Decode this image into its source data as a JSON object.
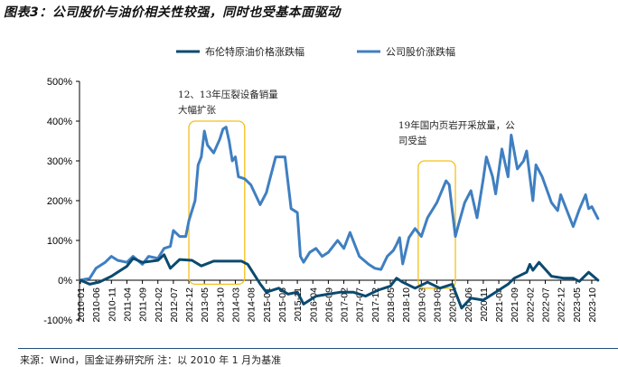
{
  "title": "图表3：公司股价与油价相关性较强，同时也受基本面驱动",
  "source": "来源：Wind，国金证券研究所  注：以 2010 年 1 月为基准",
  "chart_data": {
    "type": "line",
    "title": "图表3：公司股价与油价相关性较强，同时也受基本面驱动",
    "xlabel": "",
    "ylabel": "",
    "ylim": [
      -100,
      500
    ],
    "yticks": [
      "-100%",
      "0%",
      "100%",
      "200%",
      "300%",
      "400%",
      "500%"
    ],
    "ytick_values": [
      -100,
      0,
      100,
      200,
      300,
      400,
      500
    ],
    "x_start": "2010-01",
    "xticks": [
      "2010-01",
      "2010-06",
      "2010-11",
      "2011-04",
      "2011-09",
      "2012-02",
      "2012-07",
      "2012-12",
      "2013-05",
      "2013-10",
      "2014-03",
      "2014-08",
      "2015-01",
      "2015-06",
      "2015-11",
      "2016-04",
      "2016-09",
      "2017-02",
      "2017-07",
      "2017-12",
      "2018-05",
      "2018-10",
      "2019-03",
      "2019-08",
      "2020-01",
      "2020-06",
      "2020-11",
      "2021-04",
      "2021-09",
      "2022-02",
      "2022-07",
      "2022-12",
      "2023-05",
      "2023-10"
    ],
    "legend_position": "top-center",
    "grid": false,
    "series": [
      {
        "name": "布伦特原油价格涨跌幅",
        "color": "#0b4a6f",
        "x": [
          "2010-01",
          "2010-04",
          "2010-07",
          "2010-11",
          "2011-04",
          "2011-06",
          "2011-09",
          "2012-02",
          "2012-04",
          "2012-06",
          "2012-09",
          "2013-01",
          "2013-04",
          "2013-08",
          "2014-05",
          "2014-07",
          "2014-11",
          "2015-01",
          "2015-05",
          "2015-08",
          "2015-11",
          "2016-01",
          "2016-05",
          "2016-09",
          "2017-01",
          "2017-05",
          "2017-09",
          "2018-01",
          "2018-05",
          "2018-07",
          "2018-09",
          "2019-01",
          "2019-05",
          "2019-09",
          "2020-01",
          "2020-04",
          "2020-07",
          "2020-11",
          "2021-03",
          "2021-07",
          "2021-09",
          "2022-01",
          "2022-02",
          "2022-03",
          "2022-05",
          "2022-09",
          "2023-01",
          "2023-04",
          "2023-06",
          "2023-09",
          "2023-12"
        ],
        "values": [
          0,
          -10,
          -5,
          10,
          35,
          55,
          45,
          50,
          64,
          30,
          52,
          50,
          36,
          48,
          48,
          40,
          -9,
          -30,
          -20,
          -35,
          -30,
          -60,
          -40,
          -35,
          -30,
          -30,
          -40,
          -25,
          -15,
          5,
          -5,
          -20,
          -5,
          -20,
          -10,
          -70,
          -45,
          -50,
          -30,
          -10,
          5,
          20,
          40,
          25,
          45,
          10,
          5,
          5,
          -3,
          20,
          0
        ]
      },
      {
        "name": "公司股价涨跌幅",
        "color": "#3f7fc1",
        "x": [
          "2010-01",
          "2010-04",
          "2010-06",
          "2010-09",
          "2010-11",
          "2011-01",
          "2011-04",
          "2011-06",
          "2011-09",
          "2011-11",
          "2012-02",
          "2012-04",
          "2012-06",
          "2012-07",
          "2012-09",
          "2012-11",
          "2012-12",
          "2013-02",
          "2013-03",
          "2013-04",
          "2013-05",
          "2013-06",
          "2013-08",
          "2013-10",
          "2013-11",
          "2013-12",
          "2014-01",
          "2014-02",
          "2014-03",
          "2014-04",
          "2014-06",
          "2014-08",
          "2014-11",
          "2015-01",
          "2015-02",
          "2015-04",
          "2015-07",
          "2015-09",
          "2015-11",
          "2015-12",
          "2016-01",
          "2016-03",
          "2016-05",
          "2016-07",
          "2016-09",
          "2016-12",
          "2017-02",
          "2017-04",
          "2017-07",
          "2017-10",
          "2017-12",
          "2018-02",
          "2018-04",
          "2018-06",
          "2018-07",
          "2018-08",
          "2018-09",
          "2018-11",
          "2019-01",
          "2019-03",
          "2019-05",
          "2019-08",
          "2019-11",
          "2019-12",
          "2020-02",
          "2020-03",
          "2020-05",
          "2020-07",
          "2020-09",
          "2020-11",
          "2020-12",
          "2021-02",
          "2021-03",
          "2021-05",
          "2021-07",
          "2021-08",
          "2021-10",
          "2021-12",
          "2022-01",
          "2022-03",
          "2022-04",
          "2022-06",
          "2022-09",
          "2022-11",
          "2022-12",
          "2023-02",
          "2023-04",
          "2023-06",
          "2023-08",
          "2023-09",
          "2023-10",
          "2023-12"
        ],
        "values": [
          0,
          5,
          30,
          45,
          60,
          50,
          45,
          60,
          40,
          60,
          55,
          80,
          85,
          125,
          110,
          110,
          150,
          200,
          290,
          310,
          375,
          340,
          320,
          355,
          380,
          385,
          350,
          300,
          310,
          260,
          255,
          240,
          190,
          220,
          250,
          310,
          310,
          180,
          170,
          60,
          45,
          70,
          80,
          60,
          70,
          100,
          80,
          120,
          60,
          40,
          30,
          27,
          60,
          75,
          90,
          107,
          41,
          107,
          130,
          110,
          157,
          195,
          250,
          240,
          110,
          140,
          195,
          225,
          157,
          255,
          310,
          260,
          217,
          330,
          260,
          365,
          280,
          300,
          325,
          200,
          290,
          260,
          195,
          175,
          215,
          175,
          135,
          178,
          215,
          180,
          185,
          155
        ]
      }
    ],
    "annotations": [
      {
        "text_line1": "12、13年压裂设备销量",
        "text_line2": "大幅扩张",
        "range": [
          "2012-12",
          "2014-06"
        ],
        "yrange": [
          -10,
          400
        ]
      },
      {
        "text_line1": "19年国内页岩开采放量，公",
        "text_line2": "司受益",
        "range": [
          "2019-02",
          "2020-02"
        ],
        "yrange": [
          -20,
          300
        ]
      }
    ]
  }
}
